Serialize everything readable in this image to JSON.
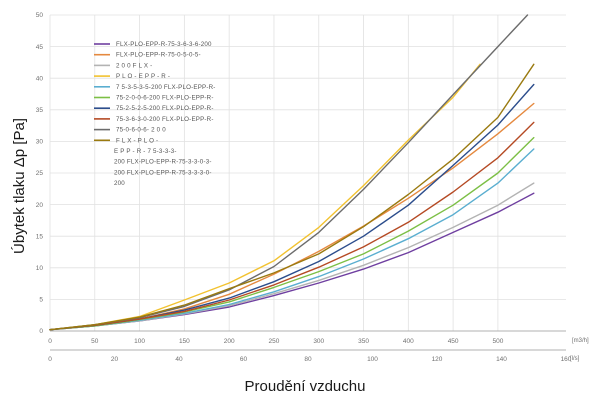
{
  "chart_data": {
    "type": "line",
    "title": "",
    "ylabel": "Úbytek tlaku Δp [Pa]",
    "xlabel": "Proudění vzduchu",
    "x_unit_primary": "[m3/h]",
    "x_unit_secondary": "[l/s]",
    "xlim": [
      0,
      576
    ],
    "ylim": [
      0,
      50
    ],
    "y_ticks": [
      "0",
      "5",
      "10",
      "15",
      "20",
      "25",
      "30",
      "35",
      "40",
      "45",
      "50"
    ],
    "x_ticks_primary": [
      "0",
      "50",
      "100",
      "150",
      "200",
      "250",
      "300",
      "350",
      "400",
      "450",
      "500"
    ],
    "x_ticks_secondary": [
      "0",
      "20",
      "40",
      "60",
      "80",
      "100",
      "120",
      "140",
      "160"
    ],
    "grid": true,
    "legend_position": "top-left",
    "legend_lines": [
      "FLX-PLO-EPP-R-75-3-6-3-6-200",
      "FLX-PLO-EPP-R-75-0-5-0-5-",
      "2 0 0            F L X -",
      "P L O - E P P - R -",
      "7  5-3-5-3-5-200  FLX-PLO-EPP-R-",
      "75-2-0-0-6-200   FLX-PLO-EPP-R-",
      "75-2-5-2-5-200   FLX-PLO-EPP-R-",
      "75-3-6-3-0-200  FLX-PLO-EPP-R-",
      "75-0-6-0-6-  2  0  0",
      "F  L  X  -  P  L  O  -",
      "E  P  P  -  R  -  7  5-3-3-3-",
      "200   FLX-PLO-EPP-R-75-3-3-0-3-",
      "200   FLX-PLO-EPP-R-75-3-3-3-0-",
      "200"
    ],
    "series": [
      {
        "color": "#6f3fa0",
        "x": [
          0,
          50,
          100,
          150,
          200,
          250,
          300,
          350,
          400,
          450,
          500,
          540
        ],
        "y": [
          0.2,
          0.8,
          1.6,
          2.6,
          3.8,
          5.6,
          7.6,
          9.8,
          12.4,
          15.6,
          18.8,
          21.8
        ]
      },
      {
        "color": "#e5893f",
        "x": [
          0,
          50,
          100,
          150,
          200,
          250,
          300,
          350,
          400,
          450,
          500,
          540
        ],
        "y": [
          0.2,
          0.9,
          1.9,
          3.5,
          5.8,
          9.0,
          12.6,
          16.6,
          21.0,
          25.8,
          31.2,
          36.0
        ]
      },
      {
        "color": "#b3b3b3",
        "x": [
          0,
          50,
          100,
          150,
          200,
          250,
          300,
          350,
          400,
          450,
          500,
          540
        ],
        "y": [
          0.2,
          0.8,
          1.6,
          2.7,
          4.0,
          5.9,
          8.0,
          10.4,
          13.2,
          16.4,
          19.9,
          23.4
        ]
      },
      {
        "color": "#f2c22f",
        "x": [
          0,
          50,
          100,
          150,
          200,
          250,
          300,
          350,
          400,
          450,
          480
        ],
        "y": [
          0.2,
          1.0,
          2.3,
          4.9,
          7.6,
          11.1,
          16.4,
          23.0,
          30.2,
          37.0,
          42.2
        ]
      },
      {
        "color": "#5aaed0",
        "x": [
          0,
          50,
          100,
          150,
          200,
          250,
          300,
          350,
          400,
          450,
          500,
          540
        ],
        "y": [
          0.2,
          0.8,
          1.7,
          2.8,
          4.2,
          6.2,
          8.6,
          11.4,
          14.6,
          18.4,
          23.4,
          28.8
        ]
      },
      {
        "color": "#7cbf45",
        "x": [
          0,
          50,
          100,
          150,
          200,
          250,
          300,
          350,
          400,
          450,
          500,
          540
        ],
        "y": [
          0.2,
          0.8,
          1.8,
          3.0,
          4.6,
          6.9,
          9.4,
          12.2,
          15.8,
          19.9,
          25.0,
          30.6
        ]
      },
      {
        "color": "#2c4d8c",
        "x": [
          0,
          50,
          100,
          150,
          200,
          250,
          300,
          350,
          400,
          450,
          500,
          540
        ],
        "y": [
          0.2,
          0.9,
          1.9,
          3.3,
          5.2,
          7.8,
          11.0,
          15.0,
          19.9,
          26.2,
          32.6,
          39.0
        ]
      },
      {
        "color": "#b54a24",
        "x": [
          0,
          50,
          100,
          150,
          200,
          250,
          300,
          350,
          400,
          450,
          500,
          540
        ],
        "y": [
          0.2,
          0.9,
          1.9,
          3.1,
          4.9,
          7.3,
          10.1,
          13.3,
          17.2,
          22.0,
          27.4,
          33.0
        ]
      },
      {
        "color": "#6c6c6c",
        "x": [
          0,
          50,
          100,
          150,
          200,
          250,
          300,
          350,
          400,
          450,
          500,
          533
        ],
        "y": [
          0.2,
          1.0,
          2.1,
          3.9,
          6.5,
          10.2,
          15.6,
          22.4,
          29.8,
          37.4,
          45.0,
          50.0
        ]
      },
      {
        "color": "#9a7a10",
        "x": [
          0,
          50,
          100,
          150,
          200,
          250,
          300,
          350,
          400,
          450,
          500,
          540
        ],
        "y": [
          0.2,
          1.0,
          2.2,
          4.1,
          6.7,
          9.2,
          12.2,
          16.5,
          21.6,
          27.2,
          33.8,
          42.2
        ]
      }
    ]
  }
}
